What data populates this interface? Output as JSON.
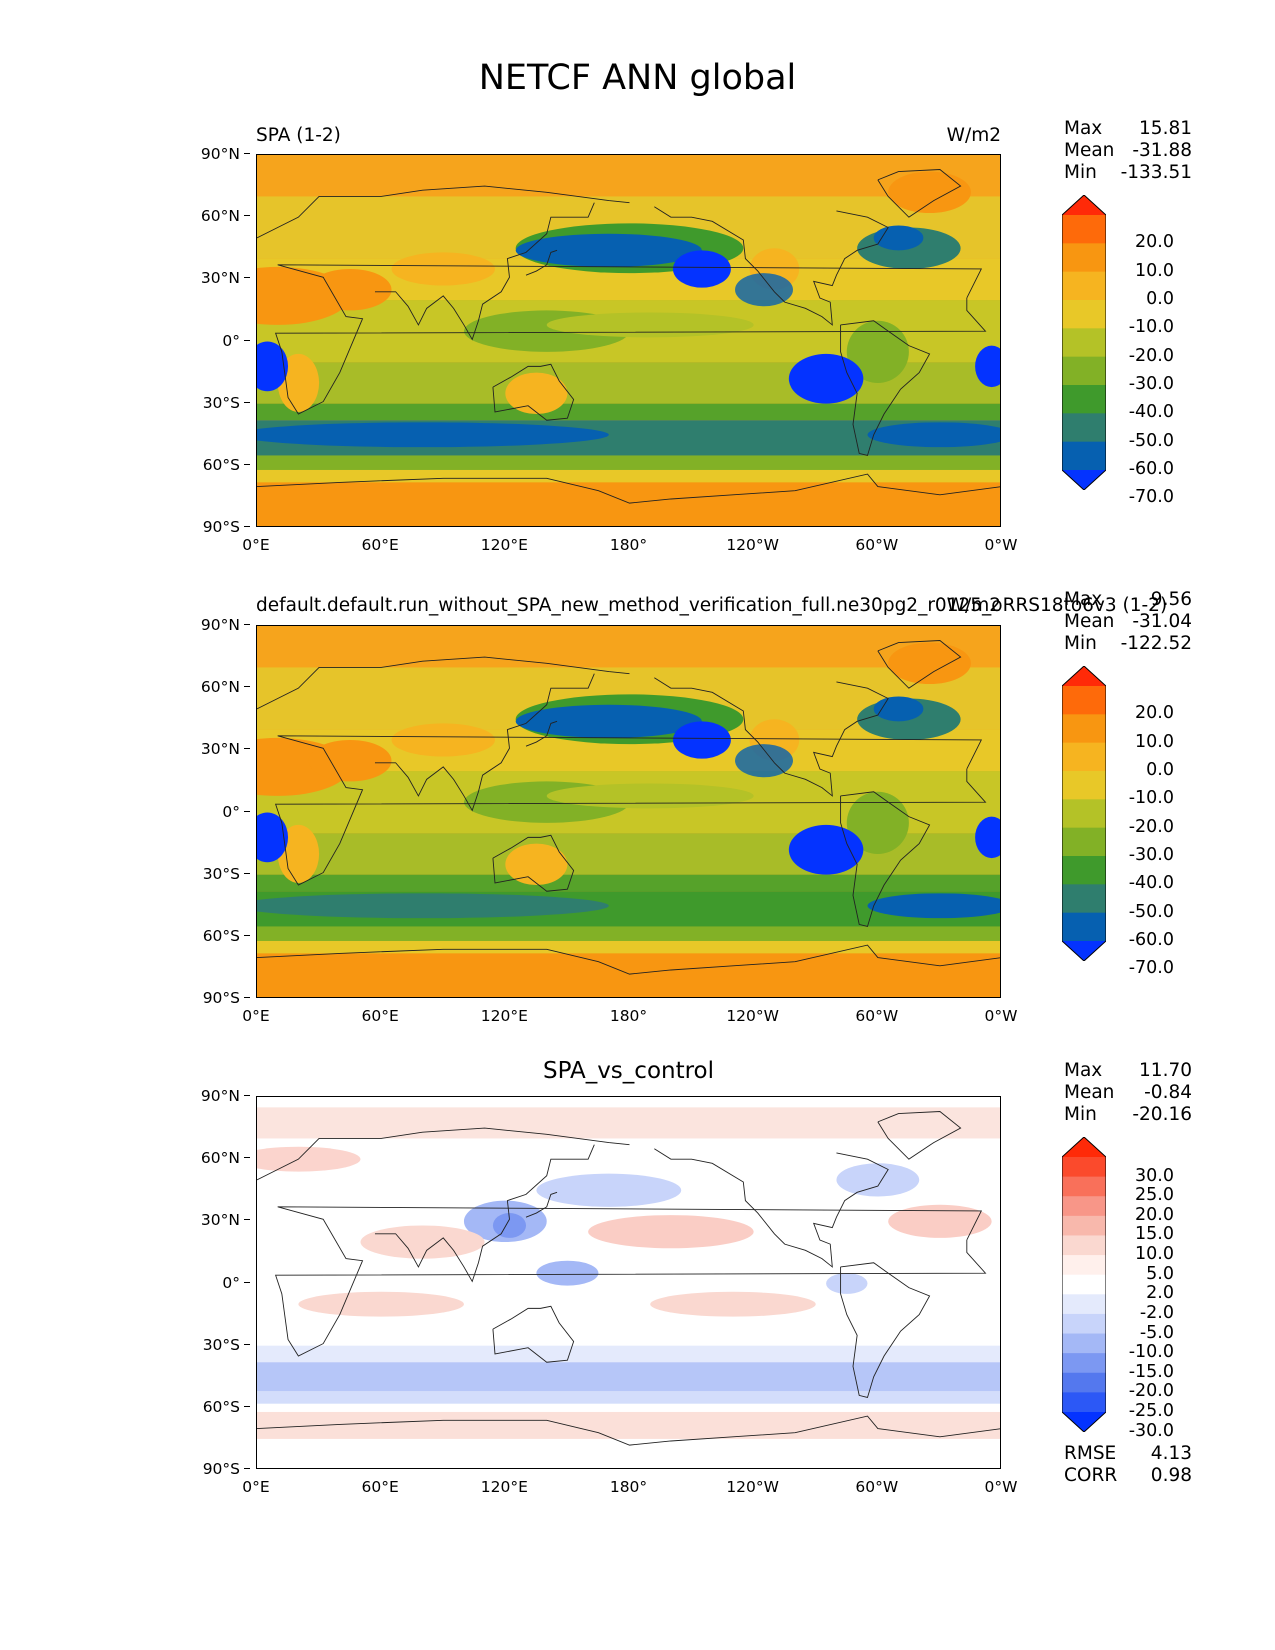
{
  "figure": {
    "title": "NETCF ANN global"
  },
  "axes": {
    "lat_labels": [
      "90°N",
      "60°N",
      "30°N",
      "0°",
      "30°S",
      "60°S",
      "90°S"
    ],
    "lon_labels": [
      "0°E",
      "60°E",
      "120°E",
      "180°",
      "120°W",
      "60°W",
      "0°W"
    ]
  },
  "panels": [
    {
      "left_label": "SPA (1-2)",
      "right_label": "W/m2",
      "center_label": "",
      "stats": {
        "max_label": "Max",
        "max": "15.81",
        "mean_label": "Mean",
        "mean": "-31.88",
        "min_label": "Min",
        "min": "-133.51"
      },
      "colorbar": {
        "labels": [
          "20.0",
          "10.0",
          "0.0",
          "-10.0",
          "-20.0",
          "-30.0",
          "-40.0",
          "-50.0",
          "-60.0",
          "-70.0"
        ],
        "colors": [
          "#ff2a08",
          "#fe6a0a",
          "#f89611",
          "#f6b420",
          "#e8c828",
          "#b4c227",
          "#82b126",
          "#3f9a2c",
          "#2f7e6e",
          "#0660b0",
          "#0433ff"
        ]
      }
    },
    {
      "left_label": "default.default.run_without_SPA_new_method_verification_full.ne30pg2_r0125_oRRS18to6v3 (1-2)",
      "right_label": "W/m2",
      "center_label": "",
      "stats": {
        "max_label": "Max",
        "max": "9.56",
        "mean_label": "Mean",
        "mean": "-31.04",
        "min_label": "Min",
        "min": "-122.52"
      },
      "colorbar": {
        "labels": [
          "20.0",
          "10.0",
          "0.0",
          "-10.0",
          "-20.0",
          "-30.0",
          "-40.0",
          "-50.0",
          "-60.0",
          "-70.0"
        ],
        "colors": [
          "#ff2a08",
          "#fe6a0a",
          "#f89611",
          "#f6b420",
          "#e8c828",
          "#b4c227",
          "#82b126",
          "#3f9a2c",
          "#2f7e6e",
          "#0660b0",
          "#0433ff"
        ]
      }
    },
    {
      "left_label": "",
      "right_label": "",
      "center_label": "SPA_vs_control",
      "stats": {
        "max_label": "Max",
        "max": "11.70",
        "mean_label": "Mean",
        "mean": "-0.84",
        "min_label": "Min",
        "min": "-20.16"
      },
      "colorbar": {
        "labels": [
          "30.0",
          "25.0",
          "20.0",
          "15.0",
          "10.0",
          "5.0",
          "2.0",
          "-2.0",
          "-5.0",
          "-10.0",
          "-15.0",
          "-20.0",
          "-25.0",
          "-30.0"
        ],
        "colors": [
          "#ff2a08",
          "#fb4a2c",
          "#f9705a",
          "#f89688",
          "#f8b8ac",
          "#fad8d0",
          "#fff0ec",
          "#ffffff",
          "#e4eafc",
          "#c8d4fa",
          "#a4b8f6",
          "#7c98f2",
          "#5478ee",
          "#2c58f6",
          "#0433ff"
        ]
      },
      "footer": {
        "rmse_label": "RMSE",
        "rmse": "4.13",
        "corr_label": "CORR",
        "corr": "0.98"
      }
    }
  ]
}
